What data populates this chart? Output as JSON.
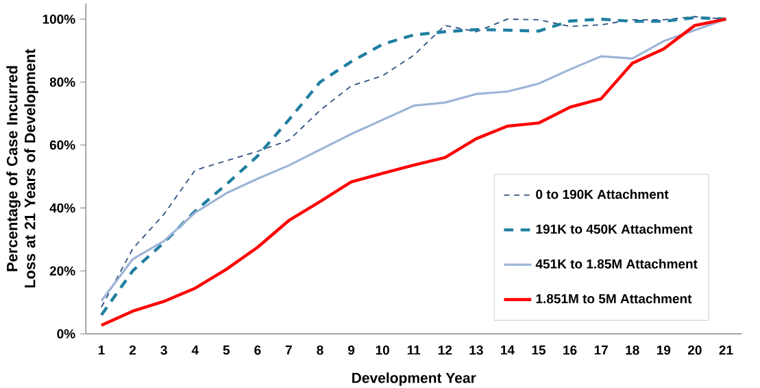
{
  "chart_data": {
    "type": "line",
    "xlabel": "Development Year",
    "ylabel": "Percentage of Case Incurred Loss at 21 Years of Development",
    "categories": [
      "1",
      "2",
      "3",
      "4",
      "5",
      "6",
      "7",
      "8",
      "9",
      "10",
      "11",
      "12",
      "13",
      "14",
      "15",
      "16",
      "17",
      "18",
      "19",
      "20",
      "21"
    ],
    "series": [
      {
        "name": "0 to 190K Attachment",
        "color": "#2f4f7f",
        "line_style": "dashed",
        "values": [
          8.5,
          27,
          38,
          52,
          55,
          58,
          61.5,
          71,
          78.8,
          82,
          88.5,
          98,
          96,
          100,
          99.8,
          97.7,
          98.2,
          99.8,
          99.8,
          100.8,
          100
        ]
      },
      {
        "name": "191K to 450K Attachment",
        "color": "#1f7fa0",
        "line_style": "dashed",
        "values": [
          6,
          20,
          29,
          39,
          47.5,
          56.5,
          68,
          80,
          86.5,
          92,
          95,
          96,
          96.7,
          96.5,
          96.2,
          99.4,
          100,
          99.3,
          99.3,
          100.5,
          100
        ]
      },
      {
        "name": "451K to 1.85M Attachment",
        "color": "#9db4d6",
        "line_style": "solid",
        "values": [
          10.5,
          23.7,
          29.5,
          38.5,
          44.7,
          49.3,
          53.5,
          58.5,
          63.5,
          68,
          72.5,
          73.5,
          76.2,
          77,
          79.5,
          84,
          88.2,
          87.5,
          93,
          96.5,
          100
        ]
      },
      {
        "name": "1.851M to 5M Attachment",
        "color": "#ff0000",
        "line_style": "solid",
        "values": [
          2.7,
          7.2,
          10.3,
          14.5,
          20.5,
          27.5,
          36,
          42,
          48.3,
          51,
          53.6,
          56,
          62,
          66,
          67,
          72,
          74.7,
          86,
          90.5,
          98,
          100
        ]
      }
    ],
    "ylim": [
      0,
      105
    ],
    "yticks": [
      {
        "value": 0,
        "label": "0%"
      },
      {
        "value": 20,
        "label": "20%"
      },
      {
        "value": 40,
        "label": "40%"
      },
      {
        "value": 60,
        "label": "60%"
      },
      {
        "value": 80,
        "label": "80%"
      },
      {
        "value": 100,
        "label": "100%"
      }
    ],
    "legend": "bottom right",
    "grid": false,
    "marker": "none"
  }
}
